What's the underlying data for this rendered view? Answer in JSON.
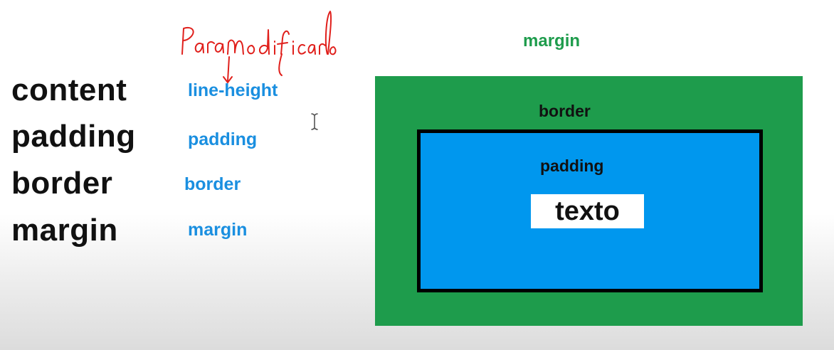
{
  "terms": [
    "content",
    "padding",
    "border",
    "margin"
  ],
  "properties": [
    "line-height",
    "padding",
    "border",
    "margin"
  ],
  "annotation": {
    "handwritten_note": "Para modificarlo"
  },
  "diagram": {
    "margin_label": "margin",
    "border_label": "border",
    "padding_label": "padding",
    "content_text": "texto"
  },
  "colors": {
    "term_text": "#111111",
    "property_text": "#1a8fe0",
    "annotation_ink": "#e0201c",
    "margin_area": "#1e9c4c",
    "padding_area": "#0097ee",
    "border_line": "#000000",
    "content_area": "#ffffff"
  }
}
